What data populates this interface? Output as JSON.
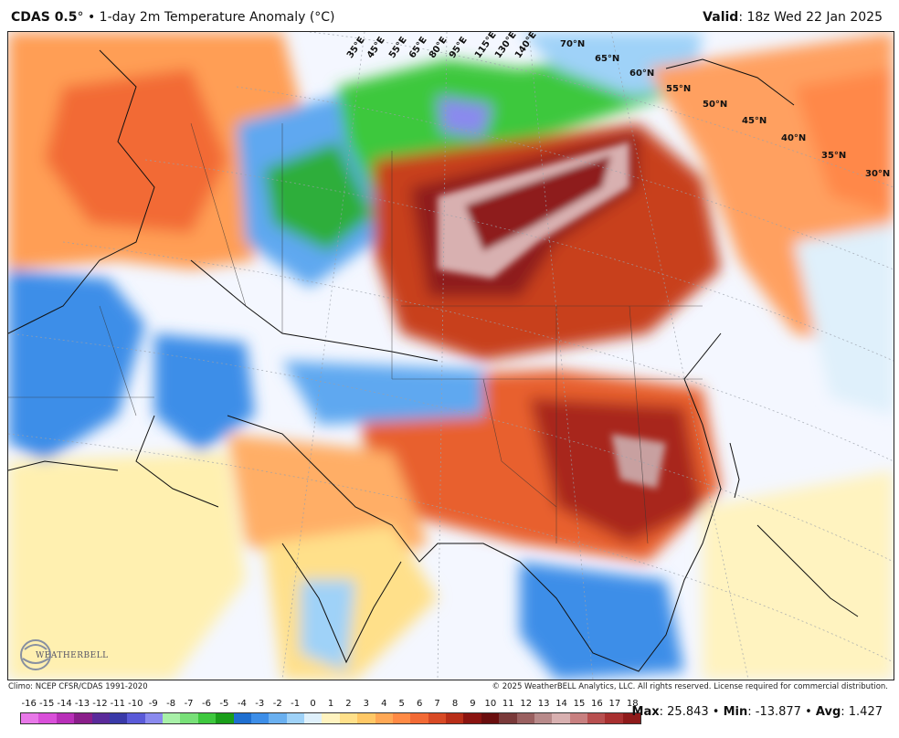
{
  "header": {
    "model": "CDAS 0.5",
    "degree": "°",
    "separator": " • ",
    "product": "1-day 2m Temperature Anomaly (°C)",
    "valid_label": "Valid",
    "valid_time": ": 18z Wed 22 Jan 2025"
  },
  "map": {
    "lon_labels": [
      "35°E",
      "45°E",
      "55°E",
      "65°E",
      "80°E",
      "95°E",
      "115°E",
      "130°E",
      "140°E"
    ],
    "lat_labels": [
      "70°N",
      "65°N",
      "60°N",
      "55°N",
      "50°N",
      "45°N",
      "40°N",
      "35°N",
      "30°N"
    ],
    "logo": "WEATHERBELL"
  },
  "footer": {
    "climo": "Climo: NCEP CFSR/CDAS 1991-2020",
    "copyright": "© 2025 WeatherBELL Analytics, LLC. All rights reserved. License required for commercial distribution."
  },
  "colorbar": {
    "ticks": [
      "-16",
      "-15",
      "-14",
      "-13",
      "-12",
      "-11",
      "-10",
      "-9",
      "-8",
      "-7",
      "-6",
      "-5",
      "-4",
      "-3",
      "-2",
      "-1",
      "0",
      "1",
      "2",
      "3",
      "4",
      "5",
      "6",
      "7",
      "8",
      "9",
      "10",
      "11",
      "12",
      "13",
      "14",
      "15",
      "16",
      "17",
      "18"
    ],
    "colors": [
      "#e878e8",
      "#d94fd9",
      "#b82fb8",
      "#8a1e8a",
      "#5a2a9a",
      "#3a3aa8",
      "#5a5ad8",
      "#8a8aee",
      "#a8f0a8",
      "#78e078",
      "#3ec83e",
      "#1a9e1a",
      "#1f6fd0",
      "#3d8ee8",
      "#6ab0f0",
      "#9fd2f8",
      "#dff0fb",
      "#fff3c0",
      "#ffe08a",
      "#ffc866",
      "#ffa855",
      "#ff8a45",
      "#f26a35",
      "#d84a25",
      "#b82e18",
      "#8a1410",
      "#6a0e0e",
      "#7a3a3a",
      "#9a6060",
      "#b88a8a",
      "#d8b0b0",
      "#c88080",
      "#b85050",
      "#a83030",
      "#8e1a1a"
    ]
  },
  "stats": {
    "max_label": "Max",
    "max_value": ": 25.843",
    "min_label": "Min",
    "min_value": ": -13.877",
    "avg_label": "Avg",
    "avg_value": ": 1.427",
    "sep": " • "
  }
}
